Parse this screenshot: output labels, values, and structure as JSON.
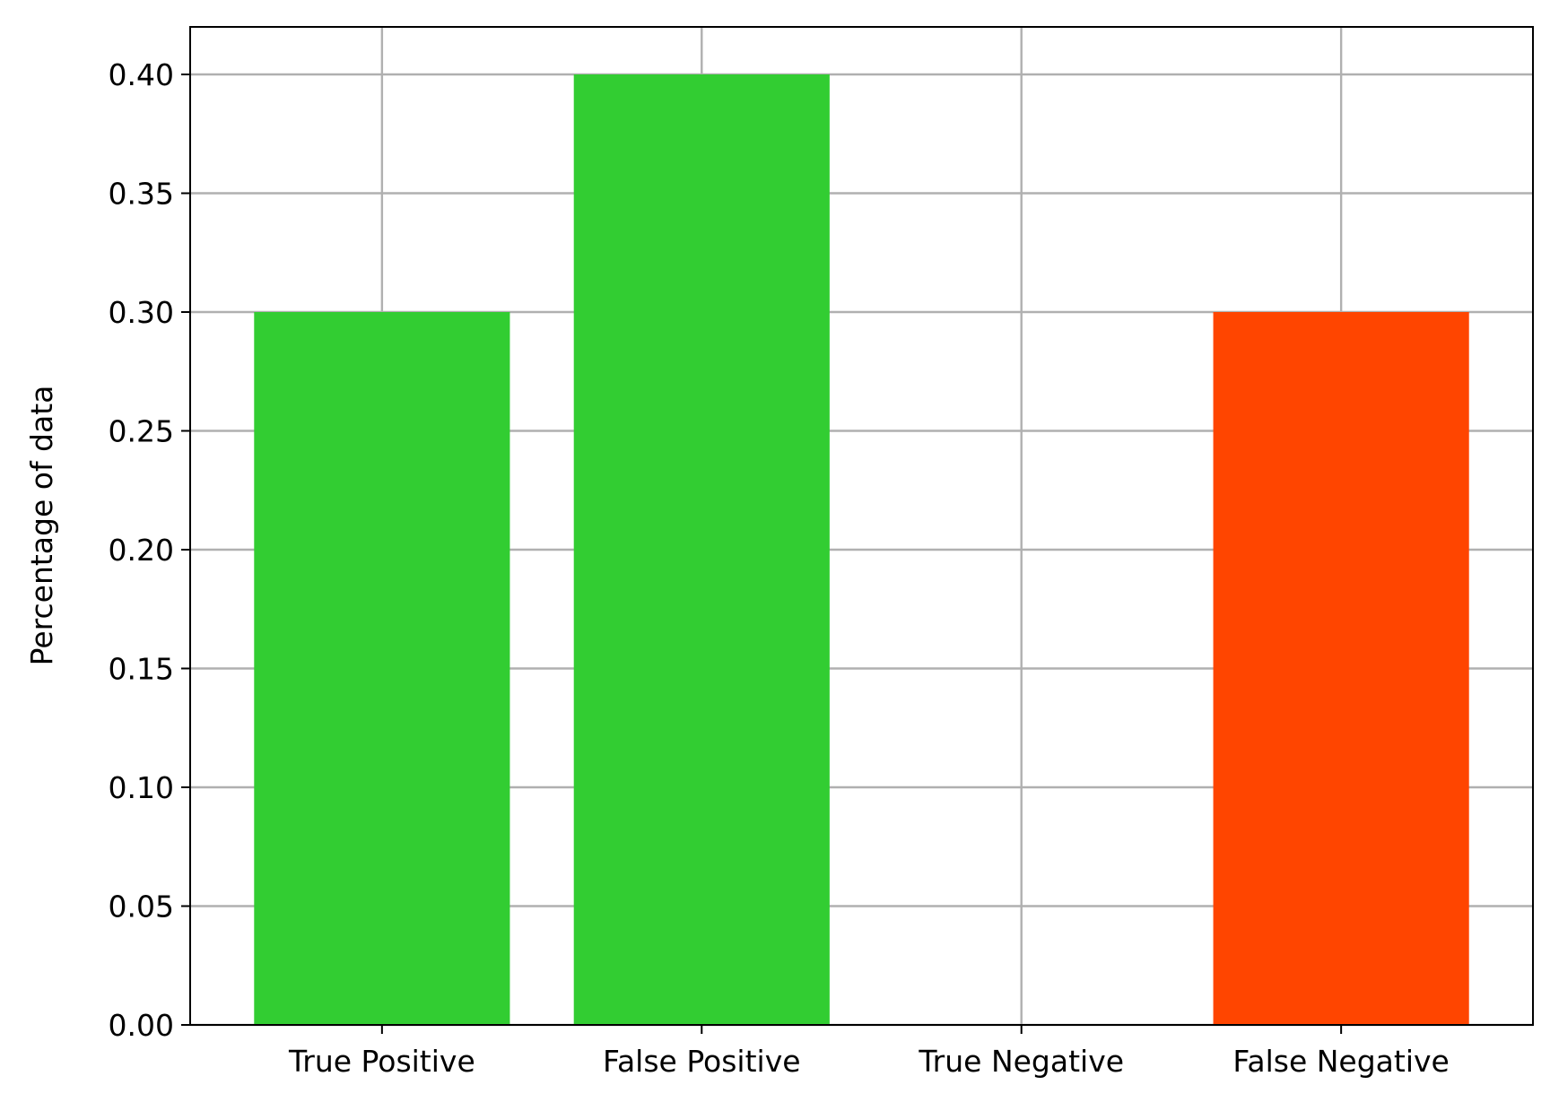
{
  "chart_data": {
    "type": "bar",
    "title": "",
    "xlabel": "",
    "ylabel": "Percentage of data",
    "categories": [
      "True Positive",
      "False Positive",
      "True Negative",
      "False Negative"
    ],
    "values": [
      0.3,
      0.4,
      0.0,
      0.3
    ],
    "bar_colors": [
      "#32cd32",
      "#32cd32",
      "#32cd32",
      "#ff4500"
    ],
    "ylim": [
      0,
      0.42
    ],
    "yticks": [
      0.0,
      0.05,
      0.1,
      0.15,
      0.2,
      0.25,
      0.3,
      0.35,
      0.4
    ],
    "ytick_labels": [
      "0.00",
      "0.05",
      "0.10",
      "0.15",
      "0.20",
      "0.25",
      "0.30",
      "0.35",
      "0.40"
    ],
    "grid": true,
    "legend": "none"
  }
}
